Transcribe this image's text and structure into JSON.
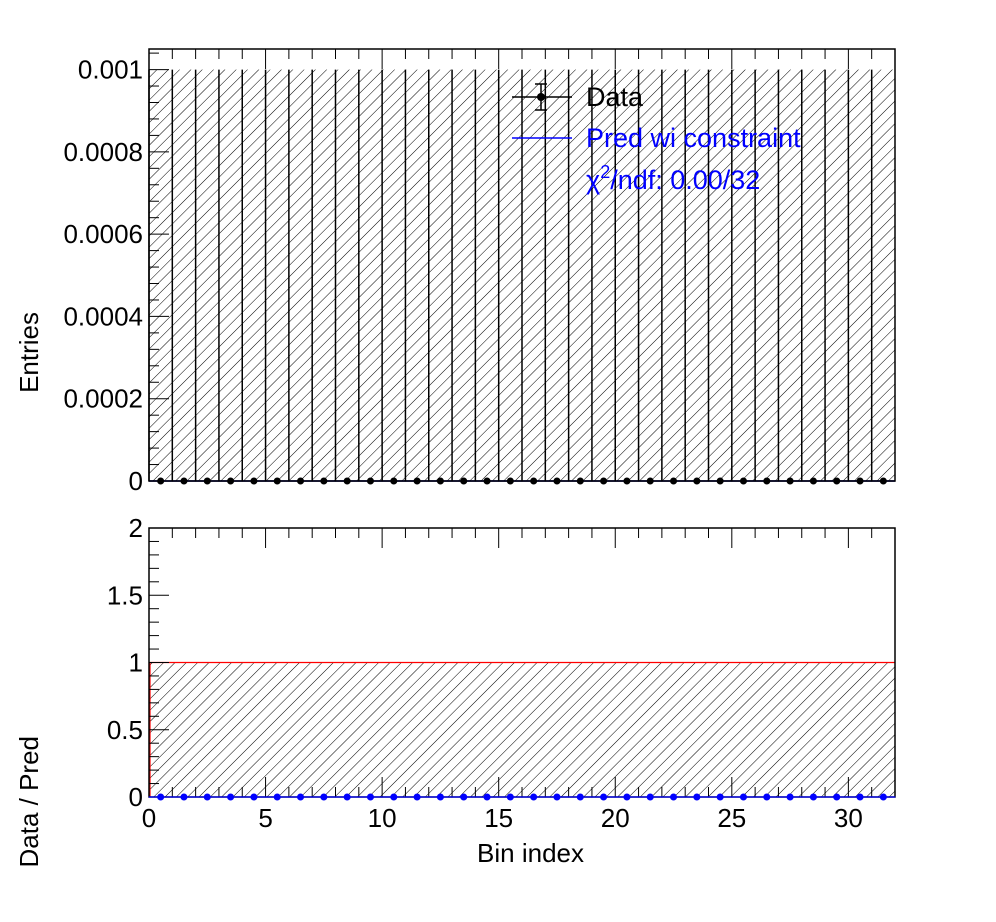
{
  "chart_data": [
    {
      "type": "bar",
      "panel": "top",
      "ylabel": "Entries",
      "xlim": [
        0,
        32
      ],
      "ylim": [
        0,
        0.00105
      ],
      "y_ticks": [
        {
          "v": 0,
          "label": "0"
        },
        {
          "v": 0.0002,
          "label": "0.0002"
        },
        {
          "v": 0.0004,
          "label": "0.0004"
        },
        {
          "v": 0.0006,
          "label": "0.0006"
        },
        {
          "v": 0.0008,
          "label": "0.0008"
        },
        {
          "v": 0.001,
          "label": "0.001"
        }
      ],
      "series": [
        {
          "name": "Data",
          "style": "markers-with-errors",
          "color": "#000000",
          "x": [
            0.5,
            1.5,
            2.5,
            3.5,
            4.5,
            5.5,
            6.5,
            7.5,
            8.5,
            9.5,
            10.5,
            11.5,
            12.5,
            13.5,
            14.5,
            15.5,
            16.5,
            17.5,
            18.5,
            19.5,
            20.5,
            21.5,
            22.5,
            23.5,
            24.5,
            25.5,
            26.5,
            27.5,
            28.5,
            29.5,
            30.5,
            31.5
          ],
          "values": [
            0,
            0,
            0,
            0,
            0,
            0,
            0,
            0,
            0,
            0,
            0,
            0,
            0,
            0,
            0,
            0,
            0,
            0,
            0,
            0,
            0,
            0,
            0,
            0,
            0,
            0,
            0,
            0,
            0,
            0,
            0,
            0
          ]
        },
        {
          "name": "Pred wi constraint",
          "style": "histogram-with-hatched-error-band",
          "color": "#0000ff",
          "values": [
            0,
            0,
            0,
            0,
            0,
            0,
            0,
            0,
            0,
            0,
            0,
            0,
            0,
            0,
            0,
            0,
            0,
            0,
            0,
            0,
            0,
            0,
            0,
            0,
            0,
            0,
            0,
            0,
            0,
            0,
            0,
            0
          ],
          "band_upper": [
            0.001,
            0.001,
            0.001,
            0.001,
            0.001,
            0.001,
            0.001,
            0.001,
            0.001,
            0.001,
            0.001,
            0.001,
            0.001,
            0.001,
            0.001,
            0.001,
            0.001,
            0.001,
            0.001,
            0.001,
            0.001,
            0.001,
            0.001,
            0.001,
            0.001,
            0.001,
            0.001,
            0.001,
            0.001,
            0.001,
            0.001,
            0.001
          ]
        }
      ],
      "legend": {
        "placement": "top-right",
        "entries": [
          {
            "label": "Data",
            "color": "#000000",
            "marker": "point-with-error"
          },
          {
            "label": "Pred wi constraint",
            "color": "#0000ff",
            "marker": "line"
          }
        ],
        "chi2_text": "/ndf: 0.00/32",
        "chi2_symbol": "χ",
        "chi2_sup": "2",
        "chi2_color": "#0000ff"
      },
      "grid": false
    },
    {
      "type": "scatter",
      "panel": "bottom",
      "xlabel": "Bin index",
      "ylabel": "Data / Pred",
      "xlim": [
        0,
        32
      ],
      "ylim": [
        0,
        2
      ],
      "x_ticks": [
        {
          "v": 0,
          "label": "0"
        },
        {
          "v": 5,
          "label": "5"
        },
        {
          "v": 10,
          "label": "10"
        },
        {
          "v": 15,
          "label": "15"
        },
        {
          "v": 20,
          "label": "20"
        },
        {
          "v": 25,
          "label": "25"
        },
        {
          "v": 30,
          "label": "30"
        }
      ],
      "y_ticks": [
        {
          "v": 0,
          "label": "0"
        },
        {
          "v": 0.5,
          "label": "0.5"
        },
        {
          "v": 1,
          "label": "1"
        },
        {
          "v": 1.5,
          "label": "1.5"
        },
        {
          "v": 2,
          "label": "2"
        }
      ],
      "reference_line": {
        "y": 1,
        "color": "#ff0000"
      },
      "band": {
        "lower": 0,
        "upper": 1,
        "style": "hatched"
      },
      "series": [
        {
          "name": "",
          "color": "#0000ff",
          "x": [
            0.5,
            1.5,
            2.5,
            3.5,
            4.5,
            5.5,
            6.5,
            7.5,
            8.5,
            9.5,
            10.5,
            11.5,
            12.5,
            13.5,
            14.5,
            15.5,
            16.5,
            17.5,
            18.5,
            19.5,
            20.5,
            21.5,
            22.5,
            23.5,
            24.5,
            25.5,
            26.5,
            27.5,
            28.5,
            29.5,
            30.5,
            31.5
          ],
          "values": [
            0,
            0,
            0,
            0,
            0,
            0,
            0,
            0,
            0,
            0,
            0,
            0,
            0,
            0,
            0,
            0,
            0,
            0,
            0,
            0,
            0,
            0,
            0,
            0,
            0,
            0,
            0,
            0,
            0,
            0,
            0,
            0
          ]
        }
      ],
      "grid": false
    }
  ]
}
